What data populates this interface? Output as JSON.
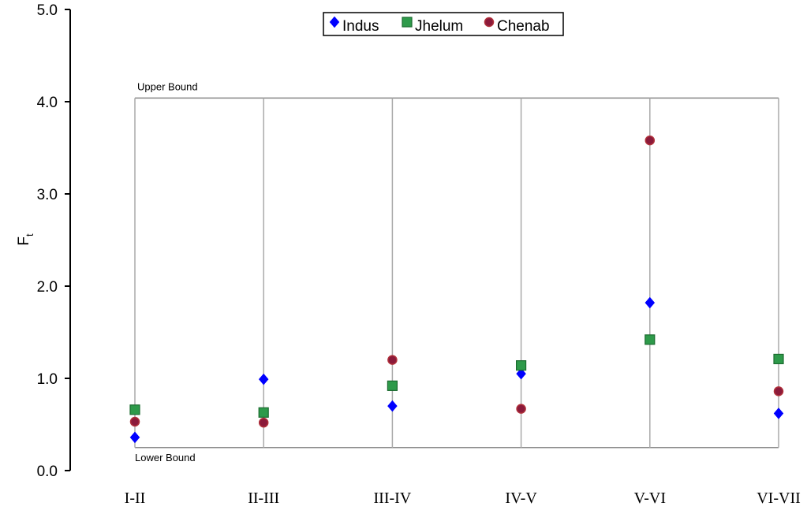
{
  "chart_data": {
    "type": "scatter",
    "ylabel": "F",
    "ylabel_subscript": "t",
    "ylim": [
      0,
      5
    ],
    "yticks": [
      "0.0",
      "1.0",
      "2.0",
      "3.0",
      "4.0",
      "5.0"
    ],
    "categories": [
      "I-II",
      "II-III",
      "III-IV",
      "IV-V",
      "V-VI",
      "VI-VII"
    ],
    "bounds": {
      "upper": {
        "label": "Upper Bound",
        "value": 4.04
      },
      "lower": {
        "label": "Lower Bound",
        "value": 0.25
      }
    },
    "legend_position": "top-center",
    "series": [
      {
        "name": "Indus",
        "marker": "diamond",
        "color": "#0000ff",
        "values": [
          0.36,
          0.99,
          0.7,
          1.05,
          1.82,
          0.62
        ]
      },
      {
        "name": "Jhelum",
        "marker": "square",
        "color": "#2e9a4a",
        "values": [
          0.66,
          0.63,
          0.92,
          1.14,
          1.42,
          1.21
        ]
      },
      {
        "name": "Chenab",
        "marker": "circle",
        "color": "#8b1a3a",
        "values": [
          0.53,
          0.52,
          1.2,
          0.67,
          3.58,
          0.86
        ]
      }
    ]
  }
}
